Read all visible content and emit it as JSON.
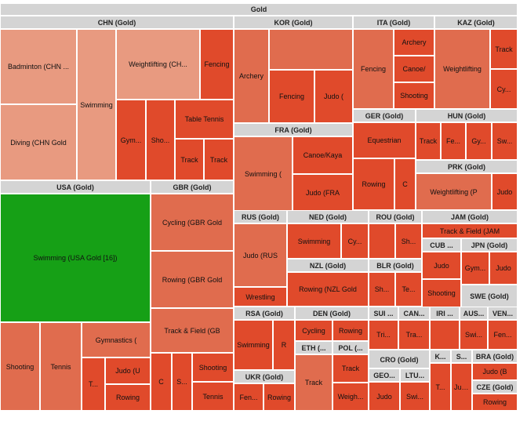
{
  "chart_data": {
    "type": "treemap",
    "title": "Gold",
    "colors": {
      "header": "#d4d4d4",
      "light": "#e89a80",
      "mid": "#e06c4e",
      "dark": "#e04a2b",
      "highlight": "#16a016"
    },
    "groups": [
      {
        "name": "CHN (Gold)",
        "cells": [
          {
            "label": "Badminton (CHN Gold",
            "shade": "light"
          },
          {
            "label": "Diving (CHN Gold",
            "shade": "light"
          },
          {
            "label": "Swimming",
            "shade": "light"
          },
          {
            "label": "Weightlifting (CHN Gold",
            "shade": "light"
          },
          {
            "label": "Fencing",
            "shade": "dark"
          },
          {
            "label": "Gymnastics",
            "shade": "dark"
          },
          {
            "label": "Shooting",
            "shade": "dark"
          },
          {
            "label": "Table Tennis",
            "shade": "dark"
          },
          {
            "label": "Track",
            "shade": "dark"
          },
          {
            "label": "Track",
            "shade": "dark"
          }
        ]
      },
      {
        "name": "KOR (Gold)",
        "cells": [
          {
            "label": "Archery",
            "shade": "mid"
          },
          {
            "label": "",
            "shade": "mid"
          },
          {
            "label": "Fencing",
            "shade": "dark"
          },
          {
            "label": "Judo (",
            "shade": "dark"
          }
        ]
      },
      {
        "name": "ITA (Gold)",
        "cells": [
          {
            "label": "Fencing",
            "shade": "mid"
          },
          {
            "label": "Archery",
            "shade": "dark"
          },
          {
            "label": "Canoe/",
            "shade": "dark"
          },
          {
            "label": "Shooting",
            "shade": "dark"
          }
        ]
      },
      {
        "name": "KAZ (Gold)",
        "cells": [
          {
            "label": "Weightlifting",
            "shade": "mid"
          },
          {
            "label": "Track",
            "shade": "dark"
          },
          {
            "label": "Cycling",
            "shade": "dark"
          }
        ]
      },
      {
        "name": "FRA (Gold)",
        "cells": [
          {
            "label": "Swimming (",
            "shade": "mid"
          },
          {
            "label": "Canoe/Kaya",
            "shade": "dark"
          },
          {
            "label": "Judo (FRA",
            "shade": "dark"
          }
        ]
      },
      {
        "name": "GER (Gold)",
        "cells": [
          {
            "label": "Equestrian",
            "shade": "dark"
          },
          {
            "label": "Rowing",
            "shade": "dark"
          },
          {
            "label": "C",
            "shade": "dark"
          }
        ]
      },
      {
        "name": "HUN (Gold)",
        "cells": [
          {
            "label": "Track",
            "shade": "dark"
          },
          {
            "label": "Fencing",
            "shade": "dark"
          },
          {
            "label": "Gymnastics",
            "shade": "dark"
          },
          {
            "label": "Swimming",
            "shade": "dark"
          }
        ]
      },
      {
        "name": "PRK (Gold)",
        "cells": [
          {
            "label": "Weightlifting (P",
            "shade": "mid"
          },
          {
            "label": "Judo",
            "shade": "dark"
          }
        ]
      },
      {
        "name": "USA (Gold)",
        "cells": [
          {
            "label": "Swimming (USA Gold [16])",
            "shade": "highlight",
            "value": 16
          }
        ]
      },
      {
        "name": "GBR (Gold)",
        "cells": [
          {
            "label": "Cycling (GBR Gold",
            "shade": "mid"
          },
          {
            "label": "Rowing (GBR Gold",
            "shade": "mid"
          },
          {
            "label": "Track & Field (GB",
            "shade": "mid"
          },
          {
            "label": "C",
            "shade": "dark"
          },
          {
            "label": "Sailing",
            "shade": "dark"
          },
          {
            "label": "Shooting",
            "shade": "dark"
          },
          {
            "label": "Tennis",
            "shade": "dark"
          }
        ]
      },
      {
        "name": "",
        "cells": [
          {
            "label": "Shooting",
            "shade": "mid"
          },
          {
            "label": "Tennis",
            "shade": "mid"
          },
          {
            "label": "Gymnastics (",
            "shade": "mid"
          },
          {
            "label": "Track",
            "shade": "dark"
          },
          {
            "label": "Judo (U",
            "shade": "dark"
          },
          {
            "label": "Rowing",
            "shade": "dark"
          }
        ]
      },
      {
        "name": "RUS (Gold)",
        "cells": [
          {
            "label": "Judo (RUS",
            "shade": "mid"
          },
          {
            "label": "Wrestling",
            "shade": "dark"
          }
        ]
      },
      {
        "name": "NED (Gold)",
        "cells": [
          {
            "label": "Swimming",
            "shade": "dark"
          },
          {
            "label": "Cycling",
            "shade": "dark"
          }
        ]
      },
      {
        "name": "ROU (Gold)",
        "cells": [
          {
            "label": "",
            "shade": "dark"
          },
          {
            "label": "Shooting",
            "shade": "dark"
          }
        ]
      },
      {
        "name": "JAM (Gold)",
        "cells": [
          {
            "label": "Track & Field (JAM",
            "shade": "dark"
          }
        ]
      },
      {
        "name": "NZL (Gold)",
        "cells": [
          {
            "label": "Rowing (NZL Gold",
            "shade": "dark"
          }
        ]
      },
      {
        "name": "BLR (Gold)",
        "cells": [
          {
            "label": "Shooting",
            "shade": "dark"
          },
          {
            "label": "Tennis",
            "shade": "dark"
          }
        ]
      },
      {
        "name": "CUB (Gold)",
        "cells": [
          {
            "label": "Judo",
            "shade": "dark"
          },
          {
            "label": "Shooting",
            "shade": "dark"
          }
        ]
      },
      {
        "name": "JPN (Gold)",
        "cells": [
          {
            "label": "Gymnastics",
            "shade": "dark"
          },
          {
            "label": "Judo",
            "shade": "dark"
          }
        ]
      },
      {
        "name": "SWE (Gold)",
        "cells": []
      },
      {
        "name": "RSA (Gold)",
        "cells": [
          {
            "label": "Swimming",
            "shade": "dark"
          },
          {
            "label": "R",
            "shade": "dark"
          }
        ]
      },
      {
        "name": "DEN (Gold)",
        "cells": [
          {
            "label": "Cycling",
            "shade": "dark"
          },
          {
            "label": "Rowing",
            "shade": "dark"
          }
        ]
      },
      {
        "name": "ETH (Gold)",
        "cells": [
          {
            "label": "Track",
            "shade": "mid"
          }
        ]
      },
      {
        "name": "POL (Gold)",
        "cells": [
          {
            "label": "Track",
            "shade": "dark"
          },
          {
            "label": "Weightlifting",
            "shade": "dark"
          }
        ]
      },
      {
        "name": "SUI (Gold)",
        "cells": [
          {
            "label": "Triathlon",
            "shade": "dark"
          }
        ]
      },
      {
        "name": "CAN (Gold)",
        "cells": [
          {
            "label": "Trampoline",
            "shade": "dark"
          }
        ]
      },
      {
        "name": "CRO (Gold)",
        "cells": []
      },
      {
        "name": "IRI (Gold)",
        "cells": [
          {
            "label": "",
            "shade": "dark"
          }
        ]
      },
      {
        "name": "AUS (Gold)",
        "cells": [
          {
            "label": "Swimming",
            "shade": "dark"
          }
        ]
      },
      {
        "name": "VEN (Gold)",
        "cells": [
          {
            "label": "Fencing",
            "shade": "dark"
          }
        ]
      },
      {
        "name": "UKR (Gold)",
        "cells": [
          {
            "label": "Fencing",
            "shade": "dark"
          },
          {
            "label": "Rowing",
            "shade": "dark"
          }
        ]
      },
      {
        "name": "GEO (Gold)",
        "cells": [
          {
            "label": "Judo",
            "shade": "dark"
          }
        ]
      },
      {
        "name": "LTU (Gold)",
        "cells": [
          {
            "label": "Swimming",
            "shade": "dark"
          }
        ]
      },
      {
        "name": "KEN (Gold)",
        "cells": [
          {
            "label": "Track",
            "shade": "dark"
          }
        ]
      },
      {
        "name": "SVK (Gold)",
        "cells": [
          {
            "label": "Judo",
            "shade": "dark"
          }
        ]
      },
      {
        "name": "BRA (Gold)",
        "cells": [
          {
            "label": "Judo (B",
            "shade": "dark"
          }
        ]
      },
      {
        "name": "CZE (Gold)",
        "cells": [
          {
            "label": "Rowing",
            "shade": "dark"
          }
        ]
      }
    ]
  }
}
